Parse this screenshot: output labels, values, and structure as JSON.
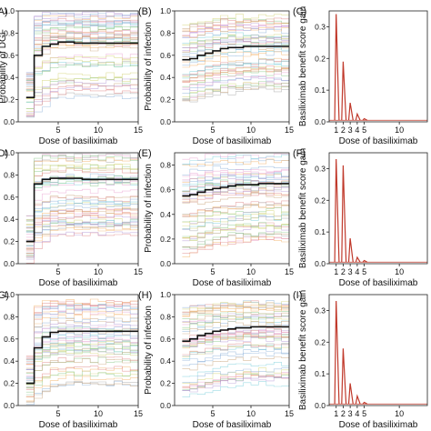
{
  "panel_common": {
    "pd_xlabel": "Dose of basiliximab",
    "pd_ylabel_infection": "Probability of infection",
    "pd_ylabel_left": "Probability of DGF",
    "gain_xlabel": "Dose of basiliximab",
    "gain_ylabel": "Basiliximab benefit score gain"
  },
  "colors": {
    "mean_line": "#111111",
    "gain_line": "#c0392b",
    "axis": "#222222",
    "ice_lines": [
      "#8fb3d9",
      "#f2b36b",
      "#8cc98c",
      "#e08a8a",
      "#b59ad6",
      "#c9a57f",
      "#e9a6d3",
      "#aaaaaa",
      "#d4d47a",
      "#7fd0dc"
    ]
  },
  "chart_data": [
    {
      "panel": "(A)",
      "type": "line",
      "role": "pd",
      "xlim": [
        0,
        15
      ],
      "ylim": [
        0,
        1.0
      ],
      "xticks": [
        5,
        10,
        15
      ],
      "yticks": [
        0.0,
        0.2,
        0.4,
        0.6,
        0.8,
        1.0
      ],
      "x": [
        1,
        2,
        3,
        4,
        5,
        6,
        7,
        8,
        9,
        10,
        11,
        12,
        13,
        14,
        15
      ],
      "mean": [
        0.22,
        0.6,
        0.68,
        0.7,
        0.72,
        0.72,
        0.71,
        0.71,
        0.71,
        0.71,
        0.71,
        0.71,
        0.71,
        0.71,
        0.71
      ],
      "band_low": [
        0.02,
        0.1,
        0.15,
        0.2,
        0.22,
        0.22,
        0.22,
        0.22,
        0.22,
        0.22,
        0.22,
        0.22,
        0.22,
        0.22,
        0.22
      ],
      "band_high": [
        0.45,
        0.95,
        0.98,
        0.98,
        0.98,
        0.98,
        0.98,
        0.98,
        0.98,
        0.98,
        0.98,
        0.98,
        0.98,
        0.98,
        0.98
      ]
    },
    {
      "panel": "(B)",
      "type": "line",
      "role": "pd",
      "xlim": [
        0,
        15
      ],
      "ylim": [
        0,
        1.0
      ],
      "xticks": [
        5,
        10,
        15
      ],
      "yticks": [
        0.0,
        0.2,
        0.4,
        0.6,
        0.8,
        1.0
      ],
      "x": [
        1,
        2,
        3,
        4,
        5,
        6,
        7,
        8,
        9,
        10,
        11,
        12,
        13,
        14,
        15
      ],
      "mean": [
        0.56,
        0.57,
        0.6,
        0.62,
        0.64,
        0.66,
        0.67,
        0.67,
        0.68,
        0.68,
        0.68,
        0.68,
        0.68,
        0.68,
        0.68
      ],
      "band_low": [
        0.05,
        0.06,
        0.08,
        0.1,
        0.12,
        0.14,
        0.15,
        0.16,
        0.17,
        0.18,
        0.18,
        0.18,
        0.18,
        0.18,
        0.18
      ],
      "band_high": [
        0.9,
        0.92,
        0.94,
        0.95,
        0.96,
        0.97,
        0.97,
        0.97,
        0.97,
        0.97,
        0.97,
        0.97,
        0.97,
        0.97,
        0.97
      ]
    },
    {
      "panel": "(C)",
      "type": "line",
      "role": "gain",
      "xlim": [
        0,
        14
      ],
      "ylim": [
        0,
        0.35
      ],
      "xticks": [
        1,
        2,
        3,
        4,
        5,
        10
      ],
      "yticks": [
        0.0,
        0.1,
        0.2,
        0.3
      ],
      "peaks": [
        [
          1,
          0.34
        ],
        [
          2,
          0.19
        ],
        [
          3,
          0.06
        ],
        [
          4,
          0.025
        ],
        [
          5,
          0.01
        ]
      ]
    },
    {
      "panel": "(D)",
      "type": "line",
      "role": "pd",
      "xlim": [
        0,
        15
      ],
      "ylim": [
        0,
        1.0
      ],
      "xticks": [
        5,
        10,
        15
      ],
      "yticks": [
        0.0,
        0.2,
        0.4,
        0.6,
        0.8,
        1.0
      ],
      "x": [
        1,
        2,
        3,
        4,
        5,
        6,
        7,
        8,
        9,
        10,
        11,
        12,
        13,
        14,
        15
      ],
      "mean": [
        0.2,
        0.72,
        0.76,
        0.77,
        0.77,
        0.77,
        0.77,
        0.76,
        0.76,
        0.76,
        0.76,
        0.76,
        0.76,
        0.76,
        0.76
      ],
      "band_low": [
        0.02,
        0.15,
        0.2,
        0.25,
        0.26,
        0.26,
        0.26,
        0.26,
        0.26,
        0.26,
        0.26,
        0.26,
        0.26,
        0.26,
        0.26
      ],
      "band_high": [
        0.42,
        0.96,
        0.98,
        0.98,
        0.98,
        0.98,
        0.98,
        0.98,
        0.98,
        0.98,
        0.98,
        0.98,
        0.98,
        0.98,
        0.98
      ]
    },
    {
      "panel": "(E)",
      "type": "line",
      "role": "pd",
      "xlim": [
        0,
        15
      ],
      "ylim": [
        0,
        0.9
      ],
      "xticks": [
        5,
        10,
        15
      ],
      "yticks": [
        0.0,
        0.2,
        0.4,
        0.6,
        0.8
      ],
      "x": [
        1,
        2,
        3,
        4,
        5,
        6,
        7,
        8,
        9,
        10,
        11,
        12,
        13,
        14,
        15
      ],
      "mean": [
        0.55,
        0.56,
        0.58,
        0.6,
        0.61,
        0.62,
        0.63,
        0.64,
        0.64,
        0.64,
        0.65,
        0.65,
        0.65,
        0.65,
        0.65
      ],
      "band_low": [
        0.06,
        0.07,
        0.09,
        0.11,
        0.13,
        0.15,
        0.16,
        0.17,
        0.18,
        0.18,
        0.18,
        0.18,
        0.18,
        0.18,
        0.18
      ],
      "band_high": [
        0.84,
        0.86,
        0.87,
        0.88,
        0.88,
        0.88,
        0.88,
        0.88,
        0.88,
        0.88,
        0.88,
        0.88,
        0.88,
        0.88,
        0.88
      ]
    },
    {
      "panel": "(F)",
      "type": "line",
      "role": "gain",
      "xlim": [
        0,
        14
      ],
      "ylim": [
        0,
        0.35
      ],
      "xticks": [
        1,
        2,
        3,
        4,
        5,
        10
      ],
      "yticks": [
        0.0,
        0.1,
        0.2,
        0.3
      ],
      "peaks": [
        [
          1,
          0.33
        ],
        [
          2,
          0.31
        ],
        [
          3,
          0.08
        ],
        [
          4,
          0.02
        ],
        [
          5,
          0.01
        ]
      ]
    },
    {
      "panel": "(G)",
      "type": "line",
      "role": "pd",
      "xlim": [
        0,
        15
      ],
      "ylim": [
        0,
        1.0
      ],
      "xticks": [
        5,
        10,
        15
      ],
      "yticks": [
        0.0,
        0.2,
        0.4,
        0.6,
        0.8,
        1.0
      ],
      "x": [
        1,
        2,
        3,
        4,
        5,
        6,
        7,
        8,
        9,
        10,
        11,
        12,
        13,
        14,
        15
      ],
      "mean": [
        0.2,
        0.52,
        0.62,
        0.66,
        0.67,
        0.67,
        0.67,
        0.67,
        0.67,
        0.67,
        0.67,
        0.67,
        0.67,
        0.67,
        0.67
      ],
      "band_low": [
        0.02,
        0.08,
        0.12,
        0.16,
        0.18,
        0.18,
        0.18,
        0.18,
        0.18,
        0.18,
        0.18,
        0.18,
        0.18,
        0.18,
        0.18
      ],
      "band_high": [
        0.45,
        0.92,
        0.96,
        0.97,
        0.97,
        0.97,
        0.97,
        0.97,
        0.97,
        0.97,
        0.97,
        0.97,
        0.97,
        0.97,
        0.97
      ]
    },
    {
      "panel": "(H)",
      "type": "line",
      "role": "pd",
      "xlim": [
        0,
        15
      ],
      "ylim": [
        0,
        1.0
      ],
      "xticks": [
        5,
        10,
        15
      ],
      "yticks": [
        0.0,
        0.2,
        0.4,
        0.6,
        0.8,
        1.0
      ],
      "x": [
        1,
        2,
        3,
        4,
        5,
        6,
        7,
        8,
        9,
        10,
        11,
        12,
        13,
        14,
        15
      ],
      "mean": [
        0.58,
        0.6,
        0.63,
        0.65,
        0.67,
        0.68,
        0.69,
        0.7,
        0.7,
        0.71,
        0.71,
        0.71,
        0.71,
        0.71,
        0.71
      ],
      "band_low": [
        0.06,
        0.08,
        0.1,
        0.12,
        0.14,
        0.16,
        0.17,
        0.18,
        0.19,
        0.19,
        0.19,
        0.19,
        0.19,
        0.19,
        0.19
      ],
      "band_high": [
        0.92,
        0.94,
        0.95,
        0.96,
        0.97,
        0.97,
        0.97,
        0.97,
        0.97,
        0.97,
        0.97,
        0.97,
        0.97,
        0.97,
        0.97
      ]
    },
    {
      "panel": "(I)",
      "type": "line",
      "role": "gain",
      "xlim": [
        0,
        14
      ],
      "ylim": [
        0,
        0.35
      ],
      "xticks": [
        1,
        2,
        3,
        4,
        5,
        10
      ],
      "yticks": [
        0.0,
        0.1,
        0.2,
        0.3
      ],
      "peaks": [
        [
          1,
          0.33
        ],
        [
          2,
          0.18
        ],
        [
          3,
          0.07
        ],
        [
          4,
          0.03
        ],
        [
          5,
          0.01
        ]
      ]
    }
  ]
}
